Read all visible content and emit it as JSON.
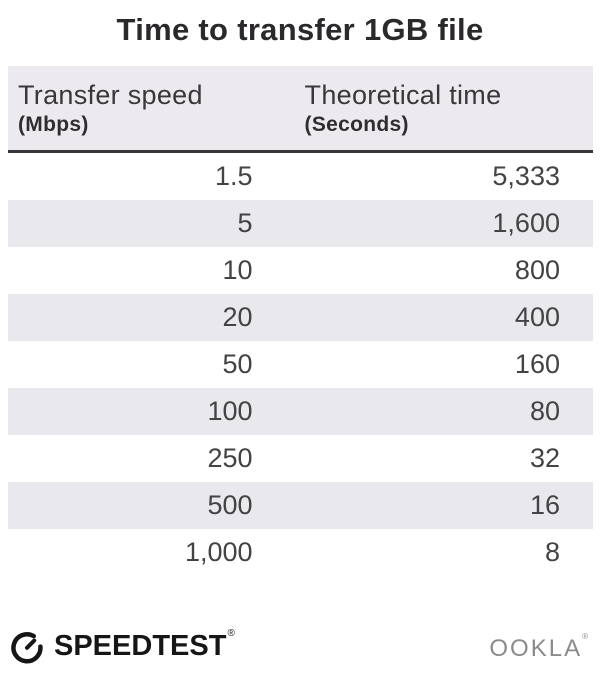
{
  "title": "Time to transfer 1GB file",
  "table": {
    "col1_header": "Transfer speed",
    "col1_unit": "(Mbps)",
    "col2_header": "Theoretical time",
    "col2_unit": "(Seconds)",
    "rows": [
      {
        "speed": "1.5",
        "time": "5,333"
      },
      {
        "speed": "5",
        "time": "1,600"
      },
      {
        "speed": "10",
        "time": "800"
      },
      {
        "speed": "20",
        "time": "400"
      },
      {
        "speed": "50",
        "time": "160"
      },
      {
        "speed": "100",
        "time": "80"
      },
      {
        "speed": "250",
        "time": "32"
      },
      {
        "speed": "500",
        "time": "16"
      },
      {
        "speed": "1,000",
        "time": "8"
      }
    ]
  },
  "footer": {
    "speedtest_label": "SPEEDTEST",
    "speedtest_trademark": "®",
    "ookla_label": "OOKLA",
    "ookla_trademark": "®"
  },
  "icons": {
    "speedtest_gauge": "gauge-icon"
  },
  "colors": {
    "background": "#ffffff",
    "row_alt": "#e9e8ed",
    "header_bg": "#eceaef",
    "header_rule": "#39363a",
    "title_text": "#2b292c",
    "number_text": "#454245",
    "speedtest_black": "#161616",
    "ookla_gray": "#8b8a8c"
  },
  "chart_data": {
    "type": "table",
    "title": "Time to transfer 1GB file",
    "columns": [
      "Transfer speed (Mbps)",
      "Theoretical time (Seconds)"
    ],
    "rows": [
      [
        1.5,
        5333
      ],
      [
        5,
        1600
      ],
      [
        10,
        800
      ],
      [
        20,
        400
      ],
      [
        50,
        160
      ],
      [
        100,
        80
      ],
      [
        250,
        32
      ],
      [
        500,
        16
      ],
      [
        1000,
        8
      ]
    ],
    "layout_hints": {
      "zebra_striping": true,
      "numbers_right_aligned": true,
      "logos": [
        "SPEEDTEST",
        "OOKLA"
      ]
    }
  }
}
